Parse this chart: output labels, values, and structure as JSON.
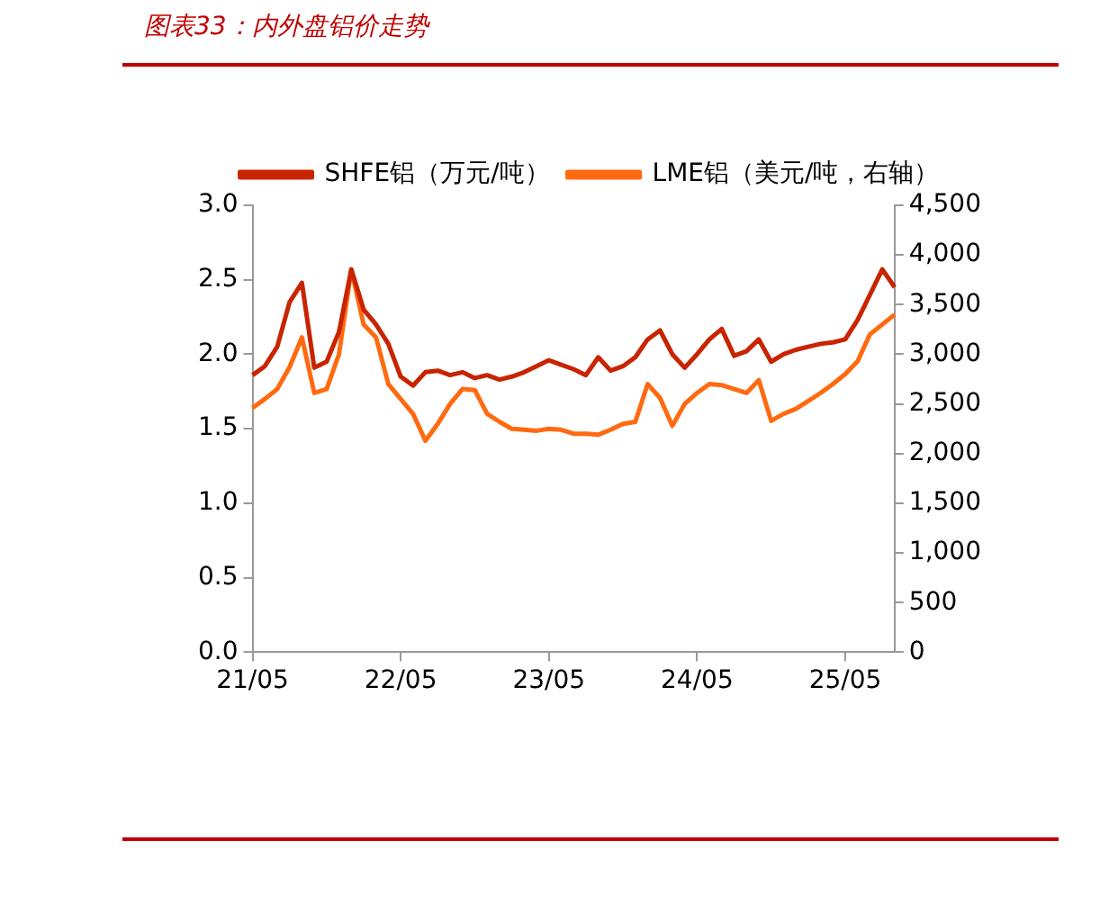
{
  "chart_data": {
    "type": "line",
    "title": "图表33：内外盘铝价走势",
    "categories": [
      "21/05",
      null,
      null,
      null,
      null,
      null,
      null,
      null,
      null,
      null,
      null,
      null,
      "22/05",
      null,
      null,
      null,
      null,
      null,
      null,
      null,
      null,
      null,
      null,
      null,
      "23/05",
      null,
      null,
      null,
      null,
      null,
      null,
      null,
      null,
      null,
      null,
      null,
      "24/05",
      null,
      null,
      null,
      null,
      null,
      null,
      null,
      null,
      null,
      null,
      null,
      "25/05",
      null,
      null,
      null,
      null
    ],
    "ylim": [
      0,
      3
    ],
    "yticks": [
      {
        "value": 0,
        "label": "0.0"
      },
      {
        "value": 0.5,
        "label": "0.5"
      },
      {
        "value": 1,
        "label": "1.0"
      },
      {
        "value": 1.5,
        "label": "1.5"
      },
      {
        "value": 2,
        "label": "2.0"
      },
      {
        "value": 2.5,
        "label": "2.5"
      },
      {
        "value": 3,
        "label": "3.0"
      }
    ],
    "y2lim": [
      0,
      4500
    ],
    "y2ticks": [
      0,
      500,
      {
        "value": 1000,
        "label": "1,000"
      },
      {
        "value": 1500,
        "label": "1,500"
      },
      {
        "value": 2000,
        "label": "2,000"
      },
      {
        "value": 2500,
        "label": "2,500"
      },
      {
        "value": 3000,
        "label": "3,000"
      },
      {
        "value": 3500,
        "label": "3,500"
      },
      {
        "value": 4000,
        "label": "4,000"
      },
      {
        "value": 4500,
        "label": "4,500"
      }
    ],
    "grid": false,
    "legend": "top",
    "marker": "none",
    "line_style": "solid",
    "series": [
      {
        "name": "SHFE铝（万元/吨）",
        "color": "#c82400",
        "values": [
          1.86,
          1.92,
          2.05,
          2.35,
          2.48,
          1.91,
          1.95,
          2.15,
          2.57,
          2.3,
          2.2,
          2.07,
          1.85,
          1.79,
          1.88,
          1.89,
          1.86,
          1.88,
          1.84,
          1.86,
          1.83,
          1.85,
          1.88,
          1.92,
          1.96,
          1.93,
          1.9,
          1.86,
          1.98,
          1.89,
          1.92,
          1.98,
          2.1,
          2.16,
          2.0,
          1.91,
          2.0,
          2.1,
          2.17,
          1.99,
          2.02,
          2.1,
          1.95,
          2.0,
          2.03,
          2.05,
          2.07,
          2.08,
          2.1,
          2.23,
          2.4,
          2.57,
          2.45
        ]
      },
      {
        "name": "LME铝（美元/吨，右轴）",
        "color": "#ff6a10",
        "axis": "y2",
        "values": [
          2460,
          2550,
          2650,
          2870,
          3170,
          2610,
          2650,
          3000,
          3850,
          3300,
          3170,
          2700,
          2550,
          2400,
          2130,
          2300,
          2500,
          2650,
          2640,
          2400,
          2320,
          2250,
          2240,
          2230,
          2250,
          2240,
          2200,
          2200,
          2190,
          2240,
          2300,
          2320,
          2700,
          2560,
          2280,
          2500,
          2610,
          2700,
          2690,
          2650,
          2610,
          2740,
          2330,
          2400,
          2450,
          2530,
          2610,
          2700,
          2800,
          2930,
          3200,
          3300,
          3400
        ]
      }
    ]
  }
}
